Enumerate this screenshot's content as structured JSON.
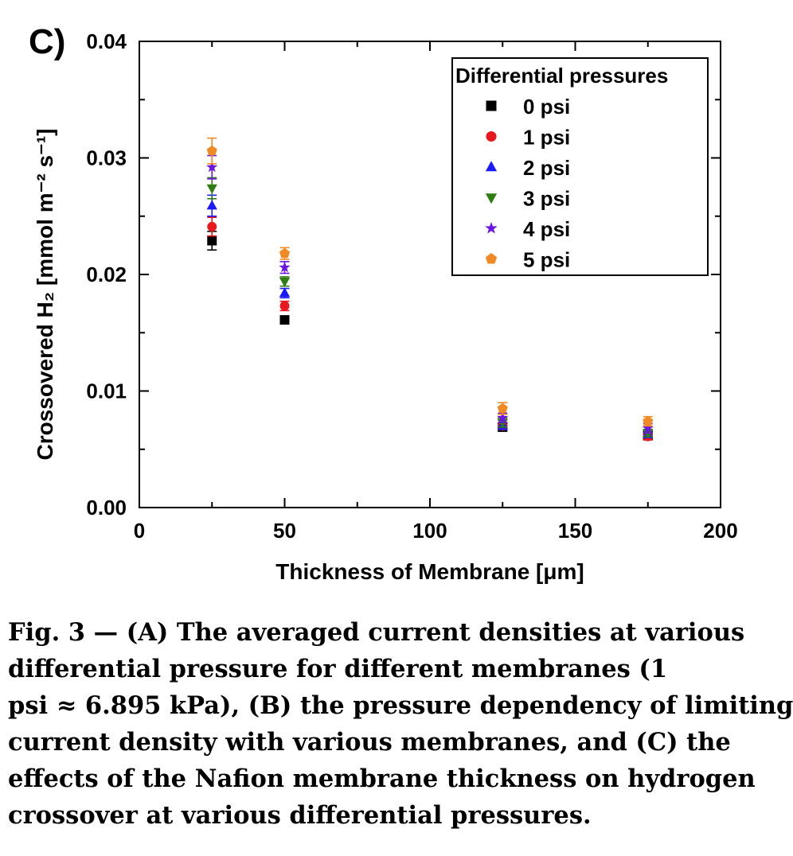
{
  "panel_label": "C)",
  "caption_lines": [
    "Fig. 3 — (A) The averaged current densities at various",
    "differential pressure for different membranes (1",
    "psi ≈ 6.895 kPa), (B) the pressure dependency of limiting",
    "current density with various membranes, and (C) the",
    "effects of the Nafion membrane thickness on hydrogen",
    "crossover at various differential pressures."
  ],
  "chart_data": {
    "type": "scatter",
    "title": "",
    "xlabel": "Thickness of Membrane [μm]",
    "ylabel": "Crossovered H₂ [mmol m⁻² s⁻¹]",
    "xlim": [
      0,
      200
    ],
    "ylim": [
      0,
      0.04
    ],
    "x_ticks": [
      "0",
      "50",
      "100",
      "150",
      "200"
    ],
    "y_ticks": [
      "0.00",
      "0.01",
      "0.02",
      "0.03",
      "0.04"
    ],
    "legend_title": "Differential pressures",
    "legend_position": "top-right",
    "grid": false,
    "x": [
      25,
      50,
      125,
      175
    ],
    "series": [
      {
        "name": "0 psi",
        "marker": "square",
        "color": "#000000",
        "values": [
          0.0229,
          0.0161,
          0.0069,
          0.0062
        ],
        "errors": [
          0.0008,
          0.0003,
          0.0003,
          0.0003
        ]
      },
      {
        "name": "1 psi",
        "marker": "circle",
        "color": "#e8191e",
        "values": [
          0.0241,
          0.0173,
          0.007,
          0.0061
        ],
        "errors": [
          0.0008,
          0.0004,
          0.0003,
          0.0003
        ]
      },
      {
        "name": "2 psi",
        "marker": "triangle-up",
        "color": "#1a1aff",
        "values": [
          0.0259,
          0.0184,
          0.0071,
          0.0063
        ],
        "errors": [
          0.0009,
          0.0004,
          0.0004,
          0.0003
        ]
      },
      {
        "name": "3 psi",
        "marker": "triangle-down",
        "color": "#2e7d12",
        "values": [
          0.0274,
          0.0194,
          0.0073,
          0.0064
        ],
        "errors": [
          0.0009,
          0.0004,
          0.0004,
          0.0003
        ]
      },
      {
        "name": "4 psi",
        "marker": "star",
        "color": "#6a14e6",
        "values": [
          0.0292,
          0.0206,
          0.0077,
          0.0068
        ],
        "errors": [
          0.001,
          0.0005,
          0.0004,
          0.0004
        ]
      },
      {
        "name": "5 psi",
        "marker": "pentagon",
        "color": "#f08a24",
        "values": [
          0.0306,
          0.0218,
          0.0085,
          0.0074
        ],
        "errors": [
          0.0011,
          0.0005,
          0.0005,
          0.0004
        ]
      }
    ]
  }
}
